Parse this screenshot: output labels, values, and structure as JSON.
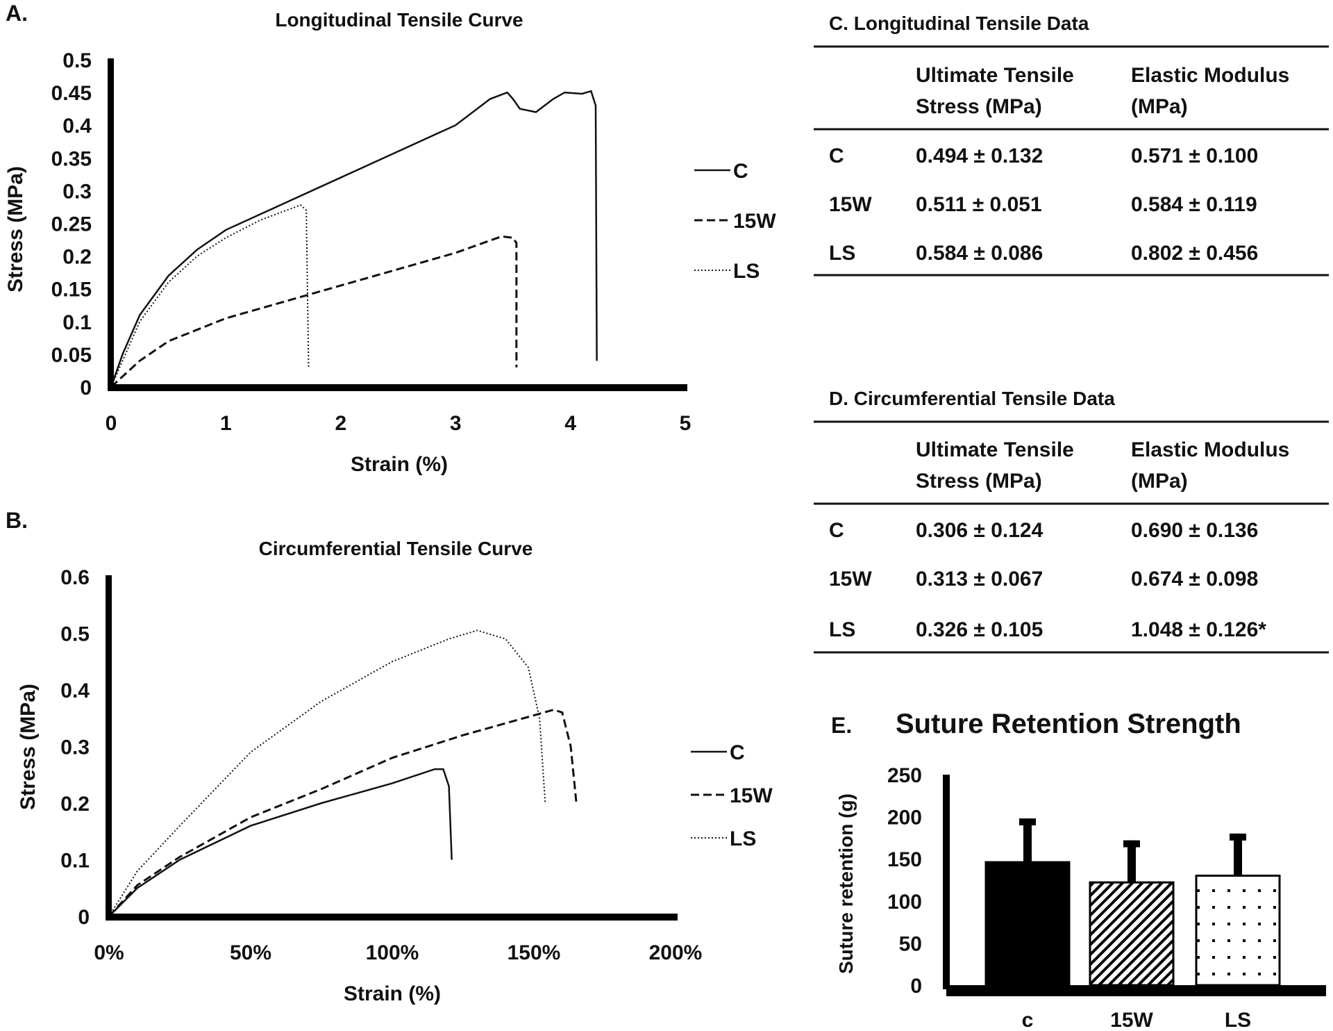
{
  "chart_data": [
    {
      "panel": "A.",
      "type": "line",
      "title": "Longitudinal Tensile Curve",
      "xlabel": "Strain (%)",
      "ylabel": "Stress (MPa)",
      "xlim": [
        0,
        5
      ],
      "ylim": [
        0,
        0.5
      ],
      "xticks": [
        "0",
        "1",
        "2",
        "3",
        "4",
        "5"
      ],
      "yticks": [
        "0",
        "0.05",
        "0.1",
        "0.15",
        "0.2",
        "0.25",
        "0.3",
        "0.35",
        "0.4",
        "0.45",
        "0.5"
      ],
      "legend_position": "right",
      "series": [
        {
          "name": "C",
          "style": "solid",
          "points": [
            [
              0,
              0
            ],
            [
              0.1,
              0.05
            ],
            [
              0.25,
              0.11
            ],
            [
              0.5,
              0.17
            ],
            [
              0.75,
              0.21
            ],
            [
              1,
              0.24
            ],
            [
              1.5,
              0.28
            ],
            [
              2,
              0.32
            ],
            [
              2.5,
              0.36
            ],
            [
              3,
              0.4
            ],
            [
              3.3,
              0.44
            ],
            [
              3.45,
              0.45
            ],
            [
              3.5,
              0.44
            ],
            [
              3.56,
              0.425
            ],
            [
              3.7,
              0.42
            ],
            [
              3.85,
              0.44
            ],
            [
              3.95,
              0.45
            ],
            [
              4.1,
              0.448
            ],
            [
              4.18,
              0.452
            ],
            [
              4.22,
              0.43
            ],
            [
              4.23,
              0.04
            ]
          ]
        },
        {
          "name": "15W",
          "style": "dashed",
          "points": [
            [
              0,
              0
            ],
            [
              0.25,
              0.04
            ],
            [
              0.5,
              0.07
            ],
            [
              1,
              0.105
            ],
            [
              1.5,
              0.13
            ],
            [
              2,
              0.155
            ],
            [
              2.5,
              0.18
            ],
            [
              3,
              0.205
            ],
            [
              3.4,
              0.23
            ],
            [
              3.5,
              0.228
            ],
            [
              3.53,
              0.22
            ],
            [
              3.53,
              0.03
            ]
          ]
        },
        {
          "name": "LS",
          "style": "dotted",
          "points": [
            [
              0,
              0
            ],
            [
              0.25,
              0.1
            ],
            [
              0.5,
              0.16
            ],
            [
              0.75,
              0.2
            ],
            [
              1,
              0.228
            ],
            [
              1.3,
              0.255
            ],
            [
              1.65,
              0.278
            ],
            [
              1.7,
              0.27
            ],
            [
              1.72,
              0.03
            ]
          ]
        }
      ]
    },
    {
      "panel": "B.",
      "type": "line",
      "title": "Circumferential Tensile Curve",
      "xlabel": "Strain (%)",
      "ylabel": "Stress (MPa)",
      "xlim": [
        0,
        200
      ],
      "ylim": [
        0,
        0.6
      ],
      "xticks": [
        "0%",
        "50%",
        "100%",
        "150%",
        "200%"
      ],
      "yticks": [
        "0",
        "0.1",
        "0.2",
        "0.3",
        "0.4",
        "0.5",
        "0.6"
      ],
      "legend_position": "right",
      "series": [
        {
          "name": "C",
          "style": "solid",
          "points": [
            [
              0,
              0
            ],
            [
              10,
              0.05
            ],
            [
              25,
              0.1
            ],
            [
              50,
              0.16
            ],
            [
              75,
              0.2
            ],
            [
              100,
              0.235
            ],
            [
              115,
              0.26
            ],
            [
              118,
              0.26
            ],
            [
              120,
              0.23
            ],
            [
              121,
              0.1
            ]
          ]
        },
        {
          "name": "15W",
          "style": "dashed",
          "points": [
            [
              0,
              0
            ],
            [
              10,
              0.055
            ],
            [
              25,
              0.105
            ],
            [
              50,
              0.175
            ],
            [
              75,
              0.225
            ],
            [
              100,
              0.28
            ],
            [
              125,
              0.32
            ],
            [
              150,
              0.355
            ],
            [
              157,
              0.365
            ],
            [
              160,
              0.36
            ],
            [
              163,
              0.3
            ],
            [
              165,
              0.2
            ]
          ]
        },
        {
          "name": "LS",
          "style": "dotted",
          "points": [
            [
              0,
              0
            ],
            [
              10,
              0.08
            ],
            [
              25,
              0.16
            ],
            [
              50,
              0.29
            ],
            [
              75,
              0.38
            ],
            [
              100,
              0.45
            ],
            [
              120,
              0.49
            ],
            [
              130,
              0.505
            ],
            [
              140,
              0.49
            ],
            [
              148,
              0.44
            ],
            [
              152,
              0.35
            ],
            [
              154,
              0.2
            ]
          ]
        }
      ]
    },
    {
      "panel": "C.",
      "type": "table",
      "title": "Longitudinal Tensile Data",
      "columns": [
        "",
        "Ultimate Tensile|Stress (MPa)",
        "Elastic Modulus|(MPa)"
      ],
      "header1": [
        "Ultimate Tensile",
        "Elastic Modulus"
      ],
      "header2": [
        "Stress (MPa)",
        "(MPa)"
      ],
      "rows": [
        [
          "C",
          "0.494 ± 0.132",
          "0.571 ± 0.100"
        ],
        [
          "15W",
          "0.511 ± 0.051",
          "0.584 ± 0.119"
        ],
        [
          "LS",
          "0.584 ± 0.086",
          "0.802 ± 0.456"
        ]
      ]
    },
    {
      "panel": "D.",
      "type": "table",
      "title": "Circumferential Tensile Data",
      "header1": [
        "Ultimate Tensile",
        "Elastic Modulus"
      ],
      "header2": [
        "Stress (MPa)",
        "(MPa)"
      ],
      "rows": [
        [
          "C",
          "0.306 ± 0.124",
          "0.690 ± 0.136"
        ],
        [
          "15W",
          "0.313 ± 0.067",
          "0.674 ± 0.098"
        ],
        [
          "LS",
          "0.326 ± 0.105",
          "1.048 ± 0.126*"
        ]
      ]
    },
    {
      "panel": "E.",
      "type": "bar",
      "title": "Suture Retention Strength",
      "xlabel": "",
      "ylabel": "Suture retention (g)",
      "ylim": [
        0,
        250
      ],
      "yticks": [
        "0",
        "50",
        "100",
        "150",
        "200",
        "250"
      ],
      "categories": [
        "c",
        "15W",
        "LS"
      ],
      "values": [
        146,
        122,
        130
      ],
      "errors": [
        52,
        50,
        50
      ],
      "patterns": [
        "solid",
        "diagonal",
        "dots"
      ]
    }
  ]
}
